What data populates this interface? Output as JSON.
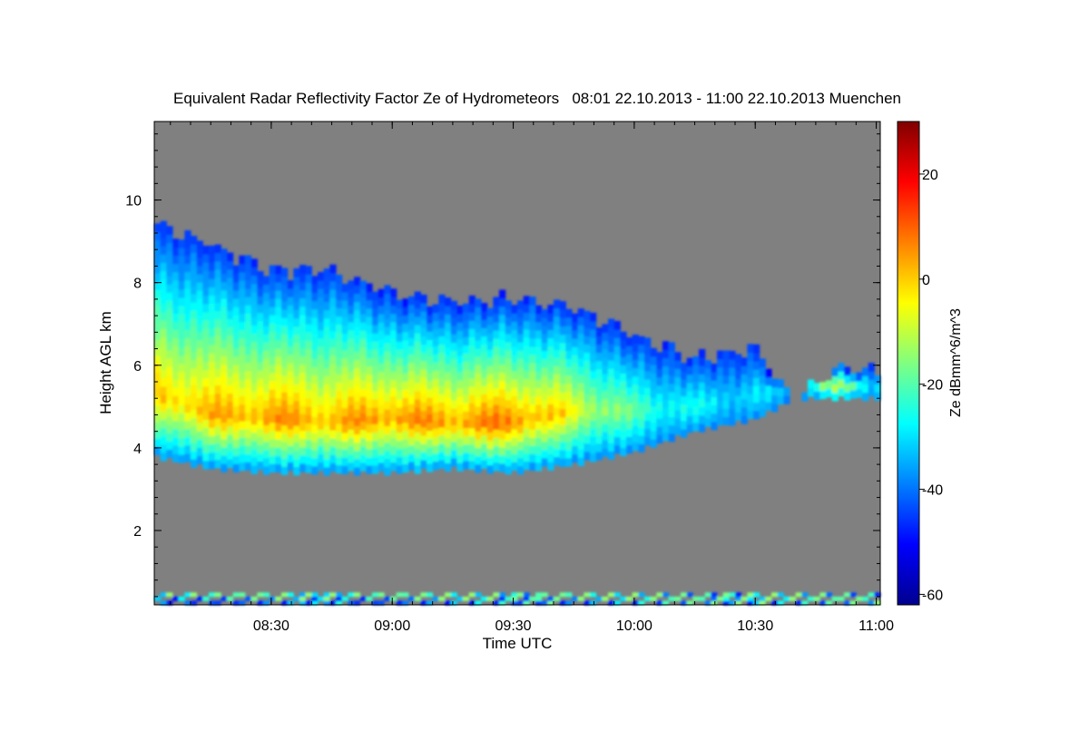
{
  "chart_data": {
    "type": "heatmap",
    "title": "Equivalent Radar Reflectivity Factor Ze of Hydrometeors   08:01 22.10.2013 - 11:00 22.10.2013 Muenchen",
    "xlabel": "Time UTC",
    "ylabel": "Height AGL km",
    "colorbar_label": "Ze dBmm^6/m^3",
    "x_tick_labels": [
      "08:30",
      "09:00",
      "09:30",
      "10:00",
      "10:30",
      "11:00"
    ],
    "x_tick_values_min": [
      510,
      540,
      570,
      600,
      630,
      660
    ],
    "xlim_min": [
      481,
      661
    ],
    "y_tick_labels": [
      "2",
      "4",
      "6",
      "8",
      "10"
    ],
    "y_ticks": [
      2,
      4,
      6,
      8,
      10
    ],
    "ylim_km": [
      0.2,
      11.9
    ],
    "colorbar_ticks": [
      20,
      0,
      -20,
      -40,
      -60
    ],
    "colorbar_range_dbz": [
      -62,
      30
    ],
    "no_signal_color": "#808080",
    "colormap": [
      "#00008f",
      "#0000ff",
      "#0080ff",
      "#00ffff",
      "#80ff80",
      "#ffff00",
      "#ff8000",
      "#ff0000",
      "#800000"
    ],
    "cloud_layer": {
      "samples_time_min": [
        481,
        495,
        510,
        525,
        540,
        555,
        570,
        585,
        600,
        615,
        630,
        640,
        650,
        660
      ],
      "top_km": [
        9.3,
        8.8,
        8.2,
        8.2,
        7.6,
        7.4,
        7.5,
        7.3,
        6.6,
        6.1,
        6.3,
        5.0,
        5.9,
        5.8
      ],
      "base_km": [
        3.8,
        3.5,
        3.4,
        3.4,
        3.4,
        3.5,
        3.4,
        3.6,
        3.9,
        4.4,
        4.7,
        5.2,
        5.2,
        5.2
      ],
      "core_height_km": [
        5.3,
        4.8,
        4.7,
        4.6,
        4.7,
        4.6,
        4.6,
        4.9,
        4.9,
        5.0,
        5.3,
        5.5,
        5.5,
        5.5
      ],
      "max_ze_dbz": [
        0,
        2,
        5,
        3,
        6,
        5,
        8,
        -5,
        -20,
        -28,
        -30,
        -35,
        -10,
        -30
      ]
    },
    "near_ground_clutter_km": [
      0.2,
      0.5
    ]
  }
}
